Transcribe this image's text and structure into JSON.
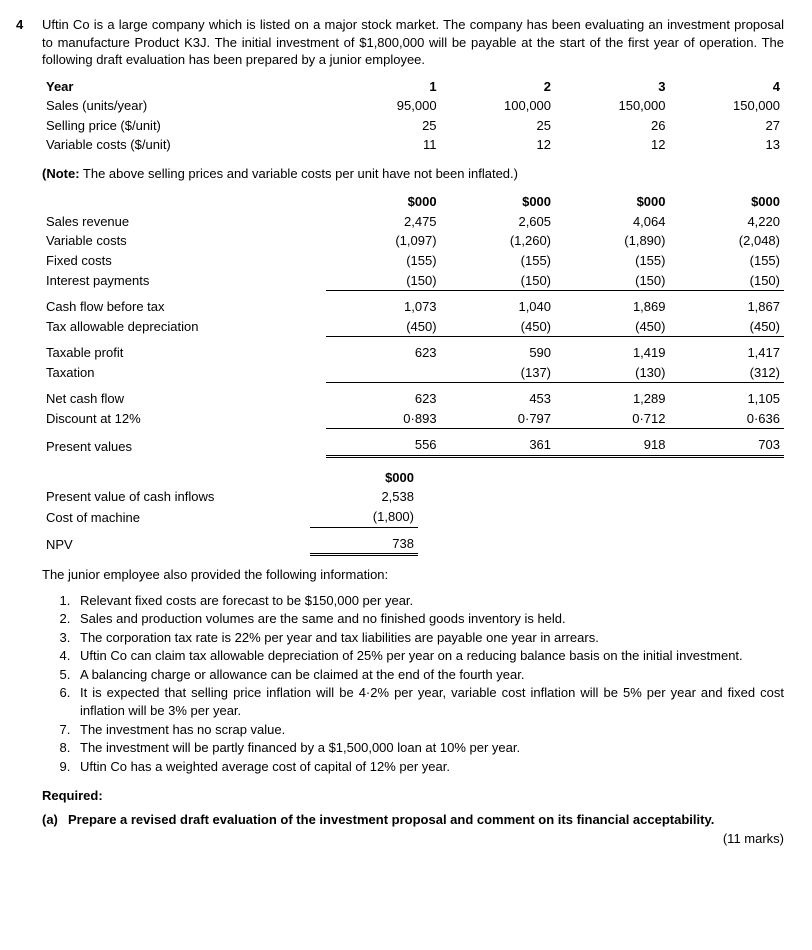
{
  "question_number": "4",
  "intro": "Uftin Co is a large company which is listed on a major stock market. The company has been evaluating an investment proposal to manufacture Product K3J. The initial investment of $1,800,000 will be payable at the start of the first year of operation. The following draft evaluation has been prepared by a junior employee.",
  "year_label": "Year",
  "years": [
    "1",
    "2",
    "3",
    "4"
  ],
  "unit_rows": [
    {
      "label": "Sales (units/year)",
      "v": [
        "95,000",
        "100,000",
        "150,000",
        "150,000"
      ]
    },
    {
      "label": "Selling price ($/unit)",
      "v": [
        "25",
        "25",
        "26",
        "27"
      ]
    },
    {
      "label": "Variable costs ($/unit)",
      "v": [
        "11",
        "12",
        "12",
        "13"
      ]
    }
  ],
  "note_prefix": "(Note:",
  "note_text": " The above selling prices and variable costs per unit have not been inflated.)",
  "col_unit": "$000",
  "sections": [
    {
      "rows": [
        {
          "label": "Sales revenue",
          "v": [
            "2,475",
            "2,605",
            "4,064",
            "4,220"
          ]
        },
        {
          "label": "Variable costs",
          "v": [
            "(1,097)",
            "(1,260)",
            "(1,890)",
            "(2,048)"
          ]
        },
        {
          "label": "Fixed costs",
          "v": [
            "(155)",
            "(155)",
            "(155)",
            "(155)"
          ]
        },
        {
          "label": "Interest payments",
          "v": [
            "(150)",
            "(150)",
            "(150)",
            "(150)"
          ]
        }
      ]
    },
    {
      "rows": [
        {
          "label": "Cash flow before tax",
          "v": [
            "1,073",
            "1,040",
            "1,869",
            "1,867"
          ]
        },
        {
          "label": "Tax allowable depreciation",
          "v": [
            "(450)",
            "(450)",
            "(450)",
            "(450)"
          ]
        }
      ]
    },
    {
      "rows": [
        {
          "label": "Taxable profit",
          "v": [
            "623",
            "590",
            "1,419",
            "1,417"
          ]
        },
        {
          "label": "Taxation",
          "v": [
            "",
            "(137)",
            "(130)",
            "(312)"
          ]
        }
      ]
    },
    {
      "rows": [
        {
          "label": "Net cash flow",
          "v": [
            "623",
            "453",
            "1,289",
            "1,105"
          ]
        },
        {
          "label": "Discount at 12%",
          "v": [
            "0·893",
            "0·797",
            "0·712",
            "0·636"
          ]
        }
      ]
    },
    {
      "rows": [
        {
          "label": "Present values",
          "v": [
            "556",
            "361",
            "918",
            "703"
          ]
        }
      ]
    }
  ],
  "summary_header": "$000",
  "summary_rows": [
    {
      "label": "Present value of cash inflows",
      "v": "2,538"
    },
    {
      "label": "Cost of machine",
      "v": "(1,800)"
    }
  ],
  "npv_label": "NPV",
  "npv_value": "738",
  "info_lead": "The junior employee also provided the following information:",
  "info_items": [
    "Relevant fixed costs are forecast to be $150,000 per year.",
    "Sales and production volumes are the same and no finished goods inventory is held.",
    "The corporation tax rate is 22% per year and tax liabilities are payable one year in arrears.",
    "Uftin Co can claim tax allowable depreciation of 25% per year on a reducing balance basis on the initial investment.",
    "A balancing charge or allowance can be claimed at the end of the fourth year.",
    "It is expected that selling price inflation will be 4·2% per year, variable cost inflation will be 5% per year and fixed cost inflation will be 3% per year.",
    "The investment has no scrap value.",
    "The investment will be partly financed by a $1,500,000 loan at 10% per year.",
    "Uftin Co has a weighted average cost of capital of 12% per year."
  ],
  "required_label": "Required:",
  "part_letter": "(a)",
  "part_text": "Prepare a revised draft evaluation of the investment proposal and comment on its financial acceptability.",
  "marks": "(11 marks)"
}
